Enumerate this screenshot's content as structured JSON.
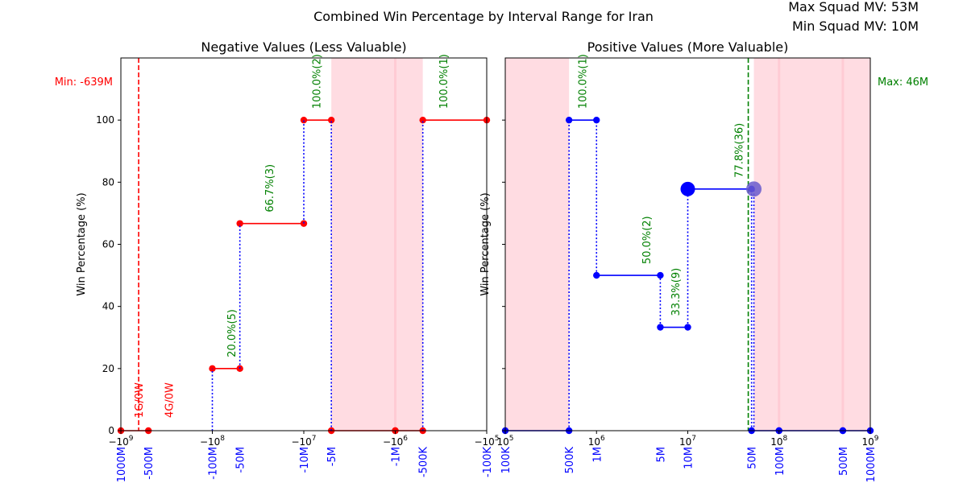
{
  "figure": {
    "title": "Combined Win Percentage by Interval Range for Iran",
    "top_right": [
      "Max Squad MV: 53M",
      "Min Squad MV: 10M"
    ]
  },
  "chart_data": [
    {
      "type": "line",
      "title": "Negative Values (Less Valuable)",
      "ylabel": "Win Percentage (%)",
      "xscale": "symlog-negative",
      "ylim": [
        0,
        100
      ],
      "ytick_labels": [
        "0",
        "20",
        "40",
        "60",
        "80",
        "100"
      ],
      "xtick_labels": [
        "−10^9",
        "−10^8",
        "−10^7",
        "−10^6",
        "−10^5"
      ],
      "interval_labels": [
        "-1000M",
        "-500M",
        "-100M",
        "-50M",
        "-10M",
        "-5M",
        "-1M",
        "-500K",
        "-100K"
      ],
      "color": "#ff0000",
      "steps": [
        {
          "x": [
            -1000,
            -500
          ],
          "y": 0
        },
        {
          "x": [
            -100,
            -50
          ],
          "y": 20
        },
        {
          "x": [
            -50,
            -10
          ],
          "y": 66.7
        },
        {
          "x": [
            -10,
            -5
          ],
          "y": 100
        },
        {
          "x": [
            -5,
            -1
          ],
          "y": 0
        },
        {
          "x": [
            -1,
            -0.5
          ],
          "y": 0
        },
        {
          "x": [
            -0.5,
            -0.1
          ],
          "y": 100
        }
      ],
      "annotations": [
        {
          "text": "1G/0W",
          "at": -639,
          "color": "#ff0000"
        },
        {
          "text": "4G/0W",
          "at": -300,
          "color": "#ff0000"
        },
        {
          "text": "20.0%(5)",
          "at": -62,
          "y": 20,
          "color": "#008000"
        },
        {
          "text": "66.7%(3)",
          "at": -24,
          "y": 66.7,
          "color": "#008000"
        },
        {
          "text": "100.0%(2)",
          "at": -7.3,
          "y": 100,
          "color": "#008000"
        },
        {
          "text": "100.0%(1)",
          "at": -0.3,
          "y": 100,
          "color": "#008000"
        }
      ],
      "marker_line": {
        "at": -639,
        "label": "Min: -639M",
        "color": "#ff0000"
      },
      "shaded": [
        [
          -5,
          -0.5
        ]
      ]
    },
    {
      "type": "line",
      "title": "Positive Values (More Valuable)",
      "ylabel": "Win Percentage (%)",
      "xscale": "log",
      "ylim": [
        0,
        100
      ],
      "xtick_labels": [
        "10^5",
        "10^6",
        "10^7",
        "10^8",
        "10^9"
      ],
      "interval_labels": [
        "100K",
        "500K",
        "1M",
        "5M",
        "10M",
        "50M",
        "100M",
        "500M",
        "1000M"
      ],
      "color": "#0000ff",
      "steps": [
        {
          "x": [
            0.1,
            0.5
          ],
          "y": 0
        },
        {
          "x": [
            0.5,
            1
          ],
          "y": 100
        },
        {
          "x": [
            1,
            5
          ],
          "y": 50
        },
        {
          "x": [
            5,
            10
          ],
          "y": 33.3
        },
        {
          "x": [
            10,
            50
          ],
          "y": 77.8
        },
        {
          "x": [
            50,
            100
          ],
          "y": 0
        },
        {
          "x": [
            100,
            500
          ],
          "y": 0
        },
        {
          "x": [
            500,
            1000
          ],
          "y": 0
        }
      ],
      "annotations": [
        {
          "text": "100.0%(1)",
          "at": 0.7,
          "y": 100,
          "color": "#008000"
        },
        {
          "text": "50.0%(2)",
          "at": 3.5,
          "y": 50,
          "color": "#008000"
        },
        {
          "text": "33.3%(9)",
          "at": 7.3,
          "y": 33.3,
          "color": "#008000"
        },
        {
          "text": "77.8%(36)",
          "at": 36,
          "y": 77.8,
          "color": "#008000"
        }
      ],
      "marker_line": {
        "at": 46,
        "label": "Max: 46M",
        "color": "#008000"
      },
      "highlight_points": [
        {
          "x": 10,
          "y": 77.8
        },
        {
          "x": 53,
          "y": 77.8
        }
      ],
      "shaded": [
        [
          0.1,
          0.5
        ],
        [
          53,
          1000
        ]
      ]
    }
  ]
}
